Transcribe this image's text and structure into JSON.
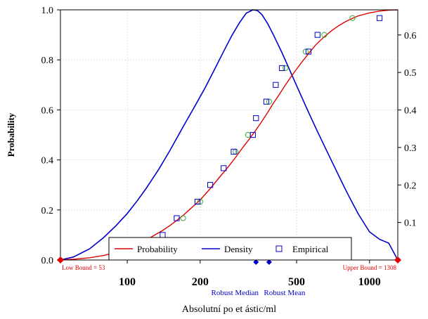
{
  "chart_data": {
    "type": "line",
    "title": "",
    "xlabel": "Absolutní po et ástic/ml",
    "ylabel": "Probability",
    "x_scale": "log",
    "xlim": [
      53,
      1308
    ],
    "ylim": [
      0,
      1.0
    ],
    "y2lim": [
      0,
      0.667
    ],
    "x_ticks": [
      100,
      200,
      500,
      1000
    ],
    "x_tick_labels": [
      "100",
      "200",
      "500",
      "1000"
    ],
    "y_ticks": [
      0.0,
      0.2,
      0.4,
      0.6,
      0.8,
      1.0
    ],
    "y_tick_labels": [
      "0.0",
      "0.2",
      "0.4",
      "0.6",
      "0.8",
      "1.0"
    ],
    "y2_ticks": [
      0.1,
      0.2,
      0.3,
      0.4,
      0.5,
      0.6
    ],
    "y2_tick_labels": [
      "0.1",
      "0.2",
      "0.3",
      "0.4",
      "0.5",
      "0.6"
    ],
    "grid": true,
    "legend_position": "bottom",
    "colors": {
      "probability": "#e00000",
      "density": "#0000cc",
      "empirical": "#0000cc",
      "fitted_points": "#33aa33",
      "bounds": "#e00000",
      "robust": "#0000cc"
    },
    "series": [
      {
        "name": "Probability",
        "kind": "line",
        "x": [
          53,
          60,
          70,
          80,
          90,
          100,
          110,
          120,
          130,
          140,
          150,
          160,
          170,
          180,
          200,
          220,
          240,
          260,
          280,
          300,
          320,
          340,
          360,
          380,
          400,
          420,
          450,
          480,
          520,
          560,
          600,
          650,
          700,
          750,
          800,
          850,
          900,
          1000,
          1100,
          1200,
          1308
        ],
        "y": [
          0.0,
          0.003,
          0.009,
          0.018,
          0.03,
          0.045,
          0.062,
          0.08,
          0.1,
          0.118,
          0.138,
          0.158,
          0.178,
          0.2,
          0.24,
          0.285,
          0.33,
          0.37,
          0.41,
          0.45,
          0.485,
          0.52,
          0.555,
          0.59,
          0.625,
          0.655,
          0.7,
          0.74,
          0.785,
          0.825,
          0.86,
          0.892,
          0.918,
          0.938,
          0.954,
          0.966,
          0.976,
          0.988,
          0.995,
          0.999,
          1.0
        ]
      },
      {
        "name": "Density",
        "kind": "line",
        "axis": "right",
        "x": [
          53,
          60,
          70,
          80,
          90,
          100,
          110,
          120,
          135,
          150,
          170,
          190,
          210,
          230,
          250,
          270,
          290,
          310,
          330,
          345,
          360,
          380,
          400,
          430,
          460,
          500,
          550,
          600,
          650,
          700,
          750,
          800,
          850,
          900,
          1000,
          1100,
          1200,
          1308
        ],
        "y": [
          0.0,
          0.008,
          0.03,
          0.06,
          0.092,
          0.124,
          0.158,
          0.192,
          0.242,
          0.292,
          0.355,
          0.41,
          0.46,
          0.51,
          0.556,
          0.598,
          0.632,
          0.658,
          0.667,
          0.665,
          0.654,
          0.63,
          0.602,
          0.56,
          0.518,
          0.465,
          0.405,
          0.352,
          0.305,
          0.262,
          0.222,
          0.185,
          0.152,
          0.122,
          0.075,
          0.055,
          0.045,
          0.0
        ]
      },
      {
        "name": "Empirical",
        "kind": "scatter",
        "marker": "square",
        "x": [
          140,
          160,
          195,
          220,
          250,
          275,
          330,
          340,
          375,
          410,
          435,
          560,
          610,
          1100
        ],
        "y": [
          0.1,
          0.167,
          0.233,
          0.3,
          0.367,
          0.433,
          0.5,
          0.567,
          0.633,
          0.7,
          0.767,
          0.833,
          0.9,
          0.967
        ]
      },
      {
        "kind": "scatter",
        "marker": "circle",
        "x": [
          170,
          200,
          280,
          315,
          385,
          450,
          545,
          650,
          850
        ],
        "y": [
          0.167,
          0.233,
          0.433,
          0.5,
          0.633,
          0.767,
          0.833,
          0.9,
          0.967
        ]
      }
    ],
    "annotations": {
      "low_bound": {
        "label": "Low Bound = 53",
        "x": 53
      },
      "upper_bound": {
        "label": "Upper Bound = 1308",
        "x": 1308
      },
      "robust_median": {
        "label": "Robust Median",
        "x": 340
      },
      "robust_mean": {
        "label": "Robust Mean",
        "x": 385
      }
    }
  }
}
